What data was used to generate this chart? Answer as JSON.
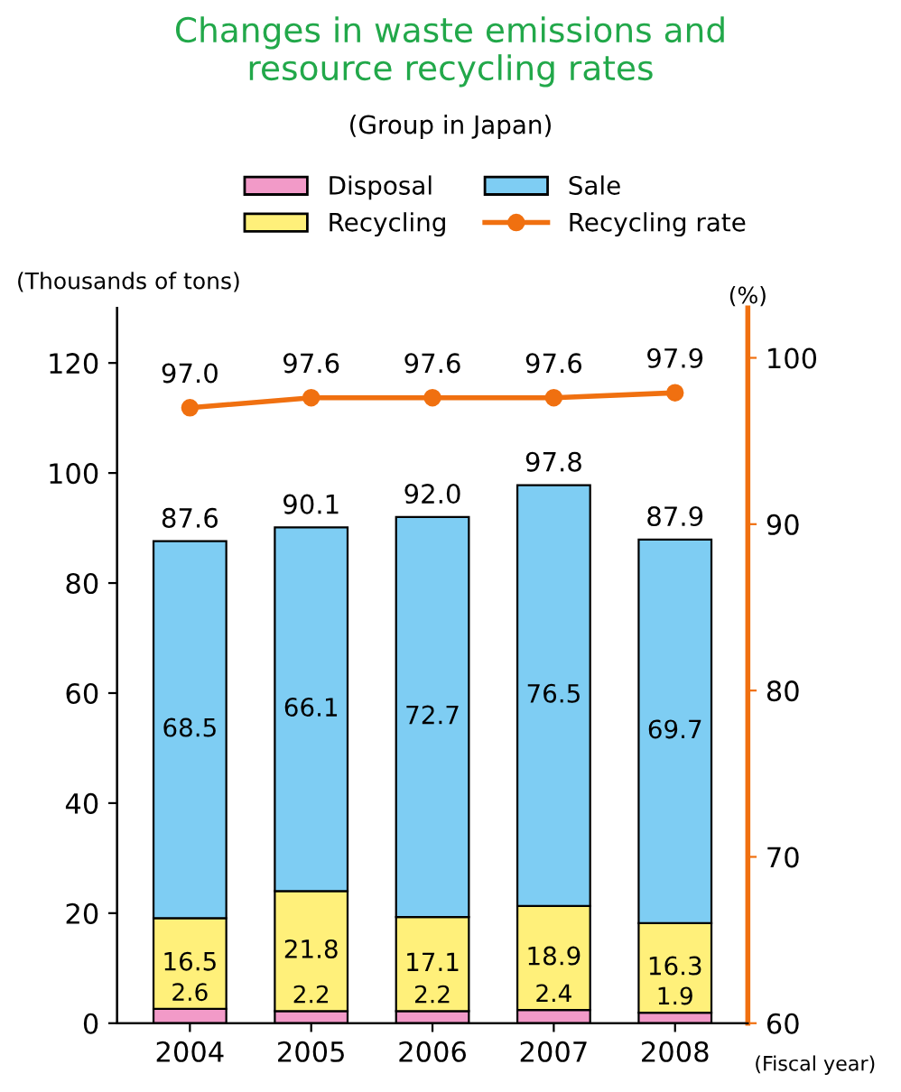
{
  "chart_data": {
    "type": "bar",
    "title": "Changes in waste emissions and\nresource recycling rates",
    "subtitle": "(Group in Japan)",
    "xlabel": "(Fiscal year)",
    "ylabel": "(Thousands of tons)",
    "y2label": "(%)",
    "categories": [
      "2004",
      "2005",
      "2006",
      "2007",
      "2008"
    ],
    "stacked": true,
    "series": [
      {
        "name": "Disposal",
        "color": "#f29ac8",
        "values": [
          2.6,
          2.2,
          2.2,
          2.4,
          1.9
        ],
        "value_labels": [
          "2.6",
          "2.2",
          "2.2",
          "2.4",
          "1.9"
        ]
      },
      {
        "name": "Recycling",
        "color": "#fff07a",
        "values": [
          16.5,
          21.8,
          17.1,
          18.9,
          16.3
        ],
        "value_labels": [
          "16.5",
          "21.8",
          "17.1",
          "18.9",
          "16.3"
        ]
      },
      {
        "name": "Sale",
        "color": "#7ecdf3",
        "values": [
          68.5,
          66.1,
          72.7,
          76.5,
          69.7
        ],
        "value_labels": [
          "68.5",
          "66.1",
          "72.7",
          "76.5",
          "69.7"
        ]
      },
      {
        "name": "Recycling rate",
        "type": "line",
        "axis": "y2",
        "color": "#f07010",
        "marker": "circle",
        "values": [
          97.0,
          97.6,
          97.6,
          97.6,
          97.9
        ],
        "value_labels": [
          "97.0",
          "97.6",
          "97.6",
          "97.6",
          "97.9"
        ]
      }
    ],
    "totals": [
      "87.6",
      "90.1",
      "92.0",
      "97.8",
      "87.9"
    ],
    "ylim": [
      0,
      130
    ],
    "yticks": [
      0,
      20,
      40,
      60,
      80,
      100,
      120
    ],
    "y2lim": [
      60,
      103
    ],
    "y2ticks": [
      60,
      70,
      80,
      90,
      100
    ],
    "grid": false,
    "legend": "top"
  }
}
